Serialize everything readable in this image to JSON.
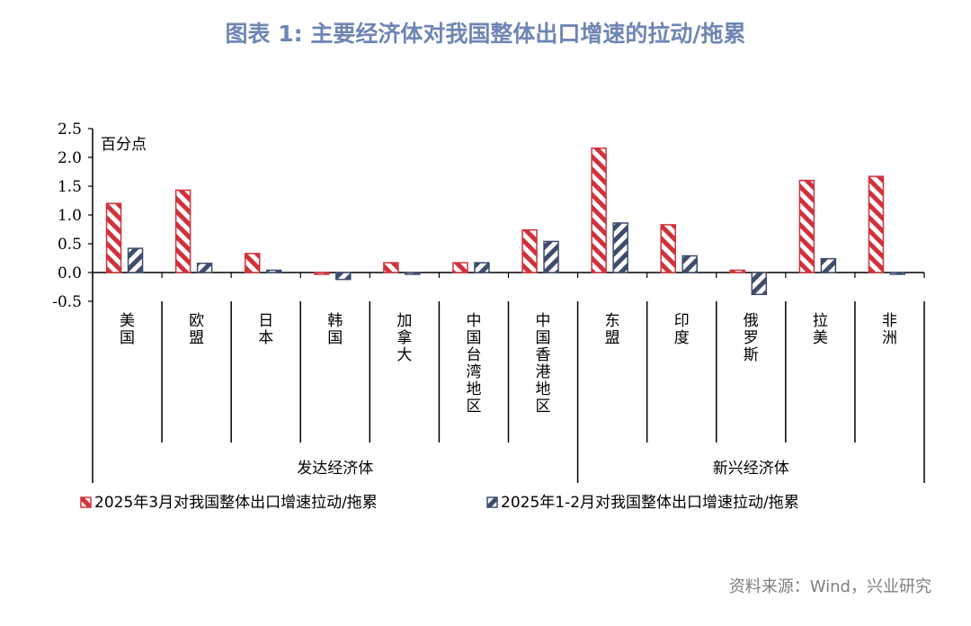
{
  "title": "图表 1:    主要经济体对我国整体出口增速的拉动/拖累",
  "source": "资料来源：Wind，兴业研究",
  "chart_data": {
    "type": "bar",
    "unit_label": "百分点",
    "categories": [
      "美国",
      "欧盟",
      "日本",
      "韩国",
      "加拿大",
      "中国台湾地区",
      "中国香港地区",
      "东盟",
      "印度",
      "俄罗斯",
      "拉美",
      "非洲"
    ],
    "groups": [
      {
        "label": "发达经济体",
        "count": 7
      },
      {
        "label": "新兴经济体",
        "count": 5
      }
    ],
    "series": [
      {
        "name": "2025年3月对我国整体出口增速拉动/拖累",
        "color": "#d0323c",
        "values": [
          1.2,
          1.43,
          0.33,
          -0.03,
          0.17,
          0.17,
          0.74,
          2.16,
          0.83,
          0.04,
          1.6,
          1.67
        ]
      },
      {
        "name": "2025年1-2月对我国整体出口增速拉动/拖累",
        "color": "#3f4c6b",
        "values": [
          0.42,
          0.16,
          0.04,
          -0.12,
          -0.03,
          0.17,
          0.54,
          0.86,
          0.29,
          -0.38,
          0.24,
          -0.03
        ]
      }
    ],
    "ylim": [
      -0.5,
      2.5
    ],
    "yticks": [
      "2.5",
      "2.0",
      "1.5",
      "1.0",
      "0.5",
      "0.0",
      "-0.5"
    ],
    "legend_position": "bottom",
    "grid": false
  }
}
